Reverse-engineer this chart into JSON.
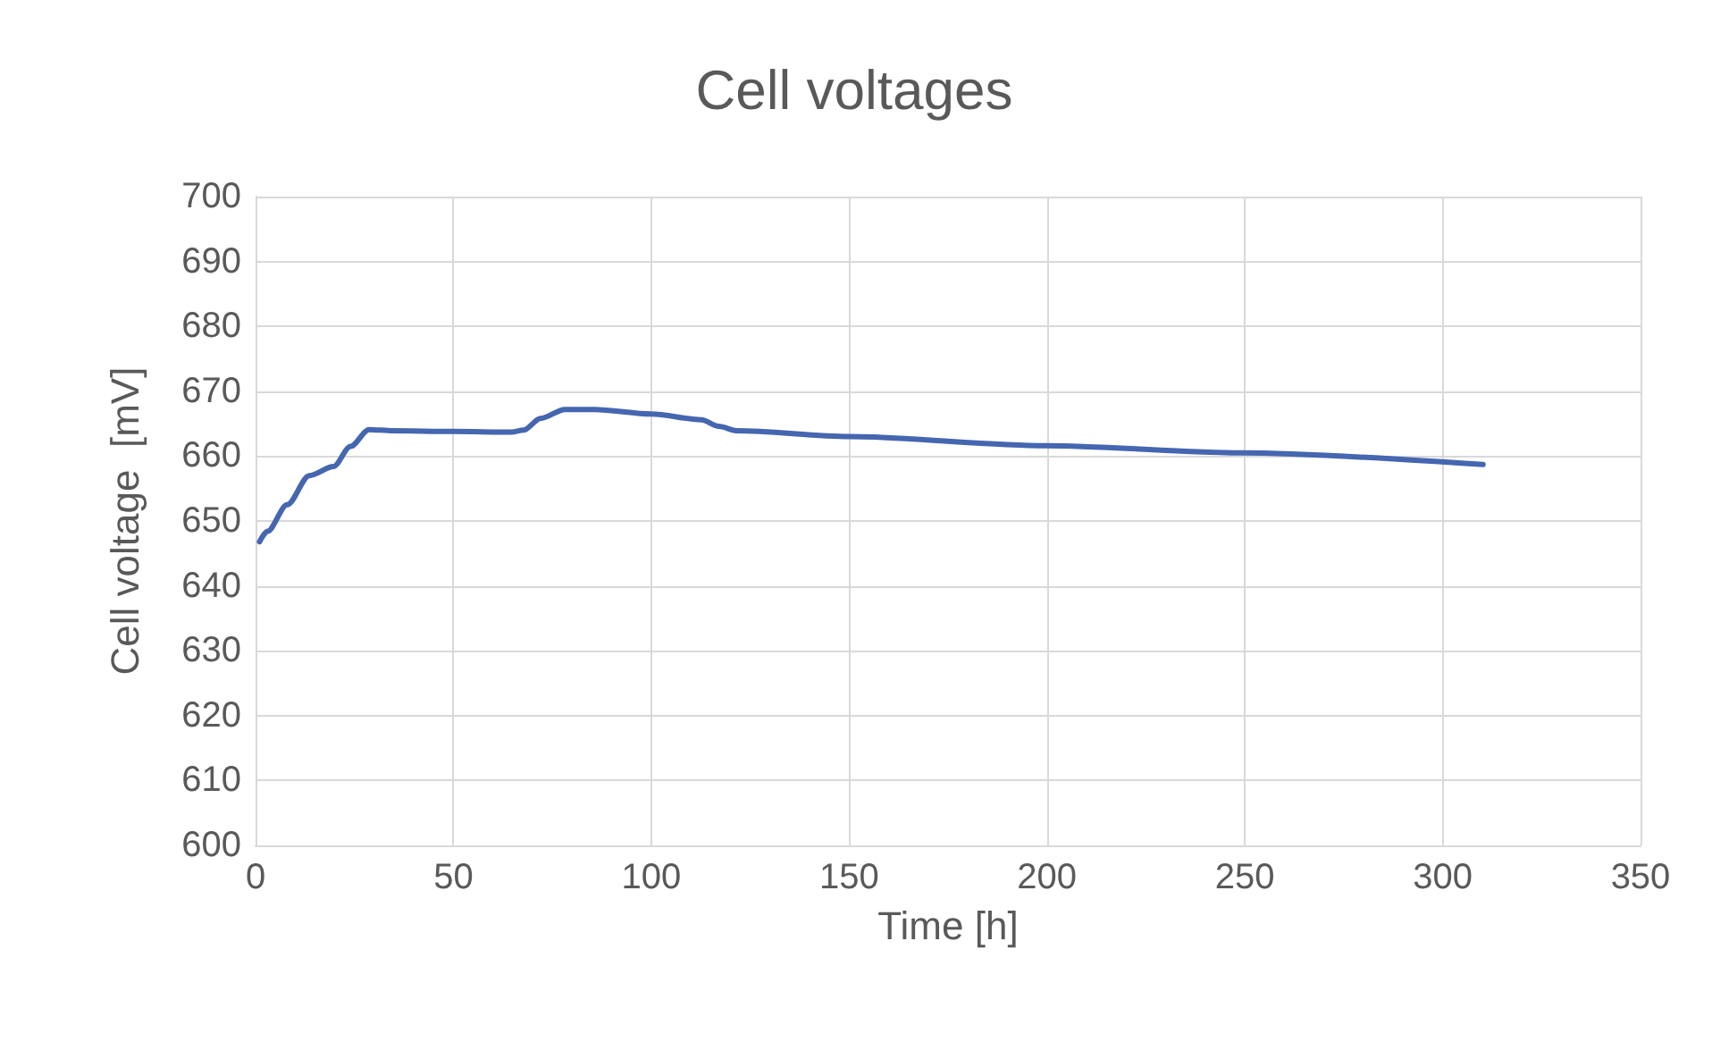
{
  "chart_data": {
    "type": "line",
    "title": "Cell voltages",
    "xlabel": "Time [h]",
    "ylabel": "Cell voltage  [mV]",
    "x": [
      1,
      3,
      8,
      13.6,
      19.7,
      24,
      28.7,
      34.7,
      50,
      64.7,
      67.7,
      72,
      78.2,
      85.7,
      100,
      112.7,
      117,
      121.8,
      150,
      199.9,
      249.4,
      310.2
    ],
    "series": [
      {
        "color": "#4566b0",
        "values": [
          646.8,
          648.4,
          652.5,
          657,
          658.4,
          661.5,
          664.1,
          663.9,
          663.8,
          663.7,
          664,
          665.8,
          667.2,
          667.2,
          666.5,
          665.6,
          664.6,
          663.9,
          663,
          661.6,
          660.5,
          658.7
        ]
      }
    ],
    "xlim": [
      0,
      350
    ],
    "xticks": [
      0,
      50,
      100,
      150,
      200,
      250,
      300,
      350
    ],
    "ylim": [
      600,
      700
    ],
    "yticks": [
      600,
      610,
      620,
      630,
      640,
      650,
      660,
      670,
      680,
      690,
      700
    ],
    "grid": true,
    "marker": "none",
    "line_style": "solid"
  }
}
